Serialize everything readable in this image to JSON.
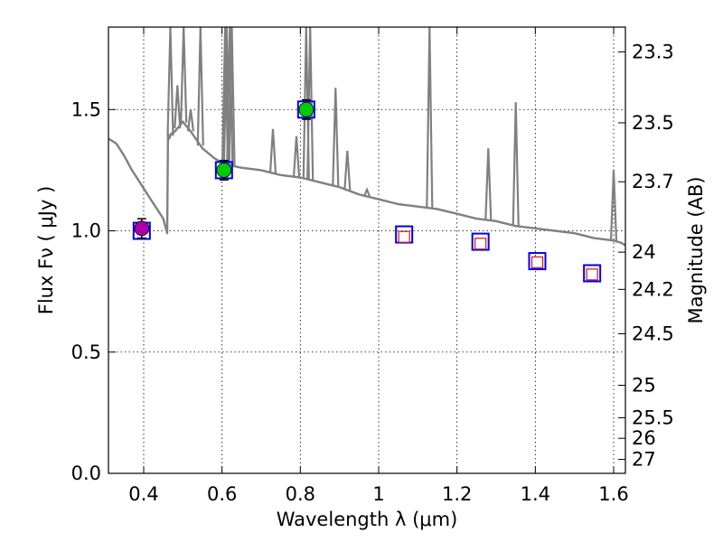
{
  "chart_data": {
    "type": "scatter",
    "title": "",
    "xlabel": "Wavelength  λ (μm)",
    "ylabel": "Flux  Fν  ( μJy )",
    "ylabel_right": "Magnitude (AB)",
    "xlim": [
      0.31,
      1.63
    ],
    "ylim": [
      0.0,
      1.84
    ],
    "grid": true,
    "x_ticks": [
      0.4,
      0.6,
      0.8,
      1.0,
      1.2,
      1.4,
      1.6
    ],
    "x_tick_labels": [
      "0.4",
      "0.6",
      "0.8",
      "1",
      "1.2",
      "1.4",
      "1.6"
    ],
    "y_ticks": [
      0.0,
      0.5,
      1.0,
      1.5
    ],
    "y_tick_labels": [
      "0.0",
      "0.5",
      "1.0",
      "1.5"
    ],
    "magnitude_ticks": [
      "23.3",
      "23.5",
      "23.7",
      "24",
      "24.2",
      "24.5",
      "25",
      "25.5",
      "26",
      "27"
    ],
    "colors": {
      "model": "#808080",
      "purple": "#aa00aa",
      "green": "#00cc00",
      "box": "#0000ee",
      "open_square": "#dd1111",
      "errorbar": "#000000"
    },
    "series": [
      {
        "name": "model spectrum",
        "kind": "line",
        "color": "#808080",
        "x": [
          0.31,
          0.33,
          0.35,
          0.37,
          0.39,
          0.41,
          0.43,
          0.45,
          0.455,
          0.46,
          0.462,
          0.465,
          0.47,
          0.48,
          0.5,
          0.52,
          0.55,
          0.58,
          0.6,
          0.62,
          0.65,
          0.7,
          0.75,
          0.8,
          0.85,
          0.9,
          0.95,
          1.0,
          1.05,
          1.1,
          1.15,
          1.2,
          1.25,
          1.3,
          1.35,
          1.4,
          1.45,
          1.5,
          1.55,
          1.6,
          1.62,
          1.63
        ],
        "y": [
          1.38,
          1.36,
          1.31,
          1.25,
          1.2,
          1.15,
          1.1,
          1.05,
          1.02,
          0.99,
          1.4,
          1.38,
          1.4,
          1.41,
          1.45,
          1.41,
          1.34,
          1.3,
          1.28,
          1.27,
          1.26,
          1.25,
          1.23,
          1.22,
          1.2,
          1.18,
          1.15,
          1.13,
          1.11,
          1.1,
          1.09,
          1.07,
          1.05,
          1.04,
          1.02,
          1.01,
          1.0,
          0.99,
          0.97,
          0.96,
          0.95,
          0.94
        ]
      },
      {
        "name": "emission lines",
        "kind": "lines",
        "color": "#808080",
        "x": [
          0.468,
          0.486,
          0.502,
          0.52,
          0.545,
          0.608,
          0.612,
          0.62,
          0.625,
          0.73,
          0.79,
          0.815,
          0.825,
          0.89,
          0.92,
          0.97,
          1.13,
          1.28,
          1.35,
          1.6
        ],
        "y": [
          1.84,
          1.6,
          1.84,
          1.5,
          1.84,
          1.84,
          1.84,
          1.84,
          1.84,
          1.42,
          1.39,
          1.84,
          1.84,
          1.59,
          1.33,
          1.17,
          1.84,
          1.34,
          1.53,
          1.25
        ]
      },
      {
        "name": "photometry (filled circles)",
        "kind": "markers",
        "x": [
          0.395,
          0.605,
          0.815
        ],
        "y": [
          1.01,
          1.25,
          1.5
        ],
        "err": [
          0.04,
          0.04,
          0.04
        ],
        "fill": [
          "#aa00aa",
          "#00cc00",
          "#00cc00"
        ]
      },
      {
        "name": "model photometry (boxes)",
        "kind": "boxes",
        "x": [
          0.395,
          0.605,
          0.815,
          1.065,
          1.26,
          1.405,
          1.545
        ],
        "y": [
          1.0,
          1.25,
          1.5,
          0.985,
          0.955,
          0.875,
          0.825
        ]
      },
      {
        "name": "photometry (open squares)",
        "kind": "open-squares",
        "x": [
          1.065,
          1.26,
          1.405,
          1.545
        ],
        "y": [
          0.975,
          0.947,
          0.87,
          0.82
        ]
      }
    ]
  }
}
